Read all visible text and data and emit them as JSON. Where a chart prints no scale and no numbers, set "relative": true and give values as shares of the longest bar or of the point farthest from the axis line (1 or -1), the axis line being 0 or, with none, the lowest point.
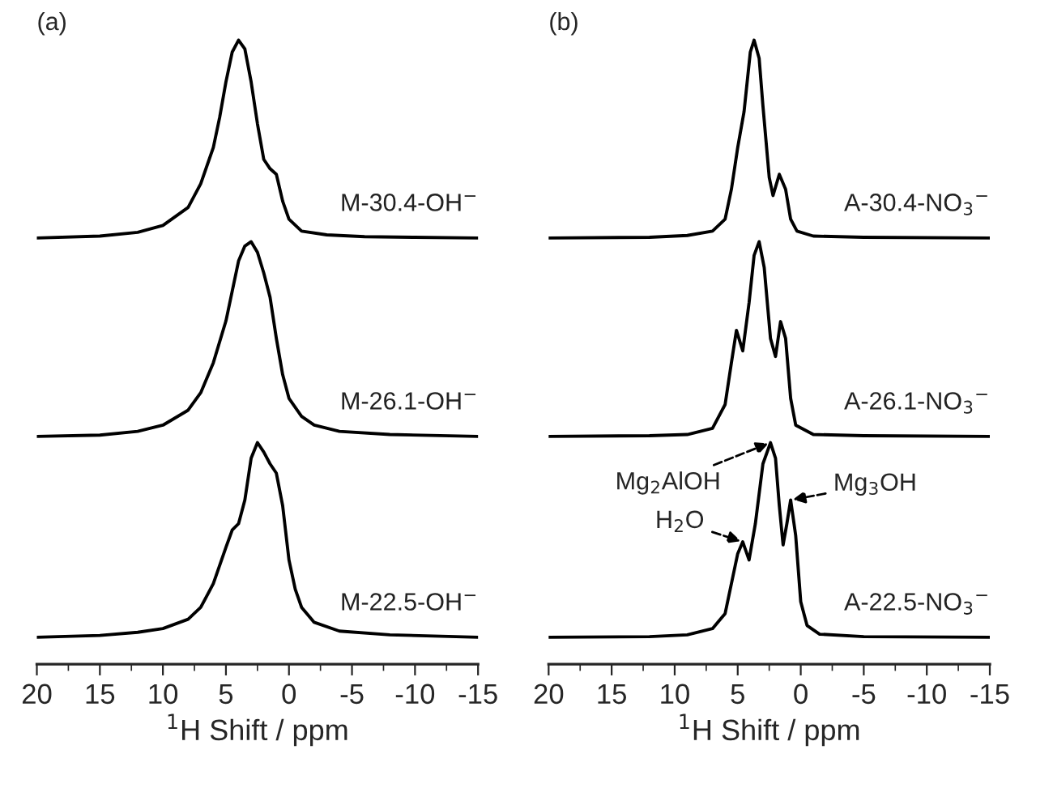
{
  "chart_data": [
    {
      "type": "line",
      "title": "(a)",
      "xlabel": "$^{1}$H Shift / ppm",
      "relative": true,
      "xlim": [
        20,
        -15
      ],
      "xticks": [
        20,
        15,
        10,
        5,
        0,
        -5,
        -10,
        -15
      ],
      "tick_labels": "x",
      "legend": false,
      "grid": false,
      "line_style": "solid",
      "marker": "none",
      "series": [
        {
          "name": "M-30.4-OH$^{−}$",
          "color": "#000000",
          "x": [
            20,
            15,
            12,
            10,
            8,
            7,
            6,
            5.5,
            5,
            4.5,
            4,
            3.5,
            3,
            2.5,
            2,
            1.5,
            1,
            0.5,
            0,
            -1,
            -3,
            -6,
            -10,
            -15
          ],
          "values": [
            0.683,
            0.686,
            0.692,
            0.703,
            0.732,
            0.77,
            0.828,
            0.876,
            0.933,
            0.981,
            1.0,
            0.986,
            0.933,
            0.866,
            0.809,
            0.794,
            0.785,
            0.742,
            0.713,
            0.694,
            0.688,
            0.685,
            0.684,
            0.683
          ]
        },
        {
          "name": "M-26.1-OH$^{−}$",
          "color": "#000000",
          "x": [
            20,
            15,
            12,
            10,
            8,
            7,
            6,
            5,
            4.5,
            4,
            3.5,
            3,
            2.5,
            2,
            1.5,
            1,
            0.5,
            0,
            -1,
            -2,
            -4,
            -8,
            -15
          ],
          "values": [
            0.365,
            0.367,
            0.373,
            0.383,
            0.407,
            0.435,
            0.483,
            0.55,
            0.598,
            0.646,
            0.67,
            0.677,
            0.66,
            0.627,
            0.588,
            0.522,
            0.464,
            0.426,
            0.397,
            0.383,
            0.373,
            0.368,
            0.365
          ]
        },
        {
          "name": "M-22.5-OH$^{−}$",
          "color": "#000000",
          "x": [
            20,
            15,
            12,
            10,
            8,
            7,
            6,
            5,
            4.5,
            4,
            3.5,
            3,
            2.5,
            2,
            1.5,
            1,
            0.5,
            0,
            -0.5,
            -1,
            -2,
            -4,
            -8,
            -15
          ],
          "values": [
            0.043,
            0.046,
            0.051,
            0.057,
            0.072,
            0.091,
            0.129,
            0.187,
            0.215,
            0.225,
            0.263,
            0.33,
            0.355,
            0.34,
            0.321,
            0.306,
            0.254,
            0.167,
            0.12,
            0.091,
            0.067,
            0.053,
            0.047,
            0.043
          ]
        }
      ]
    },
    {
      "type": "line",
      "title": "(b)",
      "xlabel": "$^{1}$H Shift / ppm",
      "relative": true,
      "xlim": [
        20,
        -15
      ],
      "xticks": [
        20,
        15,
        10,
        5,
        0,
        -5,
        -10,
        -15
      ],
      "tick_labels": "x",
      "legend": false,
      "grid": false,
      "line_style": "solid",
      "marker": "none",
      "annotations": [
        {
          "text": "Mg$_{2}$AlOH",
          "x": 2.4,
          "y": 0.355
        },
        {
          "text": "Mg$_{3}$OH",
          "x": 0.8,
          "y": 0.263
        },
        {
          "text": "H$_{2}$O",
          "x": 4.6,
          "y": 0.196
        }
      ],
      "series": [
        {
          "name": "A-30.4-NO$_{3}$$^{−}$",
          "color": "#000000",
          "x": [
            20,
            12,
            9,
            7,
            6,
            5.5,
            5,
            4.5,
            4,
            3.7,
            3.3,
            3,
            2.5,
            2.2,
            1.7,
            1.2,
            0.8,
            0.3,
            -1,
            -5,
            -15
          ],
          "values": [
            0.683,
            0.684,
            0.687,
            0.694,
            0.713,
            0.761,
            0.828,
            0.885,
            0.981,
            1.0,
            0.971,
            0.895,
            0.78,
            0.751,
            0.785,
            0.761,
            0.713,
            0.694,
            0.686,
            0.684,
            0.683
          ]
        },
        {
          "name": "A-26.1-NO$_{3}$$^{−}$",
          "color": "#000000",
          "x": [
            20,
            12,
            9,
            7,
            6,
            5.5,
            5.1,
            4.6,
            4.1,
            3.7,
            3.3,
            2.9,
            2.4,
            2,
            1.6,
            1.2,
            0.8,
            0.4,
            -1,
            -5,
            -15
          ],
          "values": [
            0.365,
            0.366,
            0.368,
            0.378,
            0.416,
            0.483,
            0.535,
            0.502,
            0.579,
            0.655,
            0.677,
            0.636,
            0.522,
            0.493,
            0.549,
            0.522,
            0.426,
            0.383,
            0.368,
            0.366,
            0.365
          ]
        },
        {
          "name": "A-22.5-NO$_{3}$$^{−}$",
          "color": "#000000",
          "x": [
            20,
            12,
            9,
            7,
            6,
            5.5,
            5,
            4.6,
            4.1,
            3.6,
            3,
            2.4,
            2,
            1.7,
            1.4,
            1.1,
            0.8,
            0.4,
            0,
            -0.5,
            -1.5,
            -5,
            -15
          ],
          "values": [
            0.043,
            0.044,
            0.047,
            0.057,
            0.081,
            0.129,
            0.177,
            0.196,
            0.167,
            0.225,
            0.321,
            0.355,
            0.33,
            0.254,
            0.191,
            0.225,
            0.263,
            0.206,
            0.1,
            0.062,
            0.048,
            0.044,
            0.043
          ]
        }
      ]
    }
  ]
}
